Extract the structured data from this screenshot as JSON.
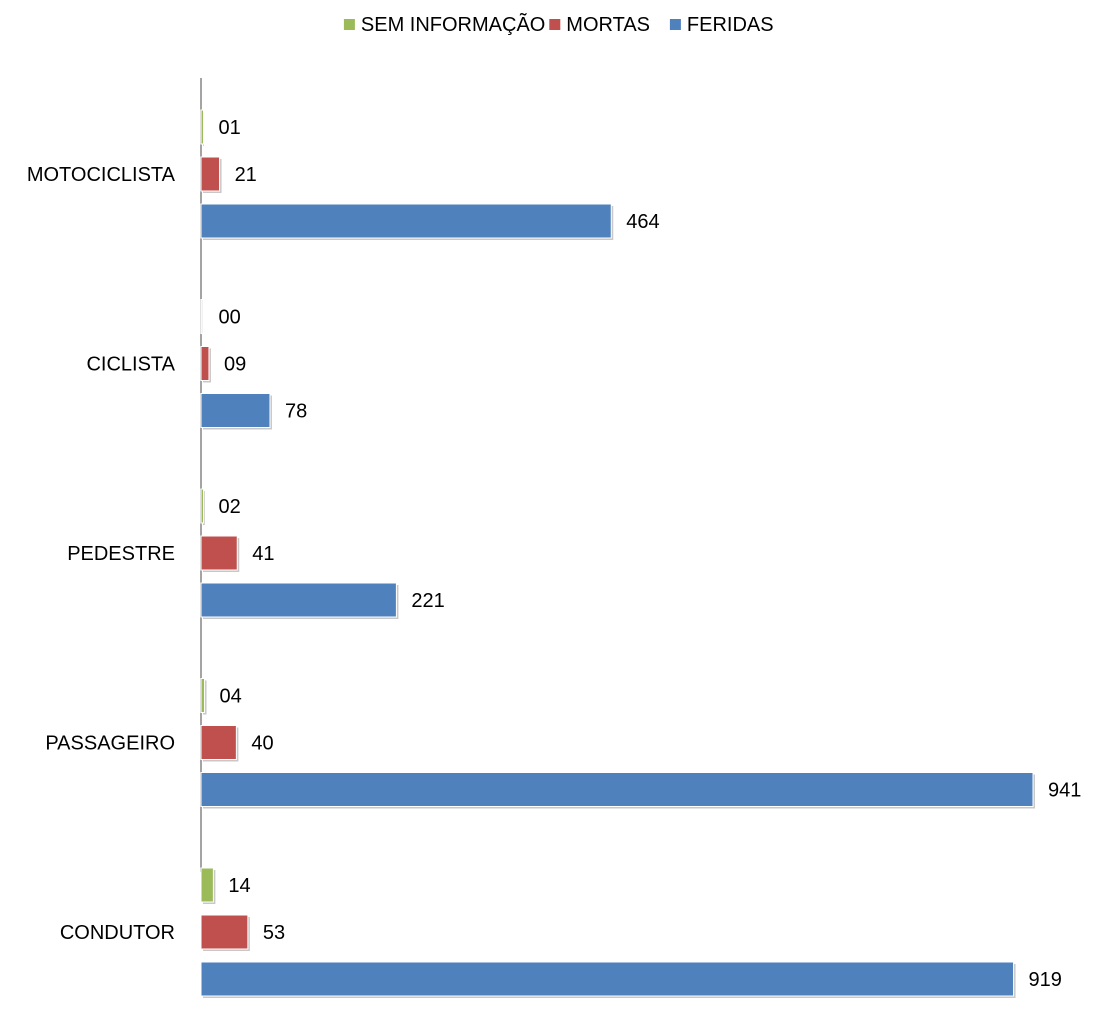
{
  "chart_data": {
    "type": "bar",
    "orientation": "horizontal",
    "categories": [
      "MOTOCICLISTA",
      "CICLISTA",
      "PEDESTRE",
      "PASSAGEIRO",
      "CONDUTOR"
    ],
    "series": [
      {
        "name": "SEM INFORMAÇÃO",
        "color": "#9BBB59",
        "values": [
          1,
          0,
          2,
          4,
          14
        ],
        "labels": [
          "01",
          "00",
          "02",
          "04",
          "14"
        ]
      },
      {
        "name": "MORTAS",
        "color": "#C0504D",
        "values": [
          21,
          9,
          41,
          40,
          53
        ],
        "labels": [
          "21",
          "09",
          "41",
          "40",
          "53"
        ]
      },
      {
        "name": "FERIDAS",
        "color": "#4F81BD",
        "values": [
          464,
          78,
          221,
          941,
          919
        ],
        "labels": [
          "464",
          "78",
          "221",
          "941",
          "919"
        ]
      }
    ],
    "legend": {
      "position": "top"
    },
    "xlim": [
      0,
      941
    ],
    "grid": false
  }
}
